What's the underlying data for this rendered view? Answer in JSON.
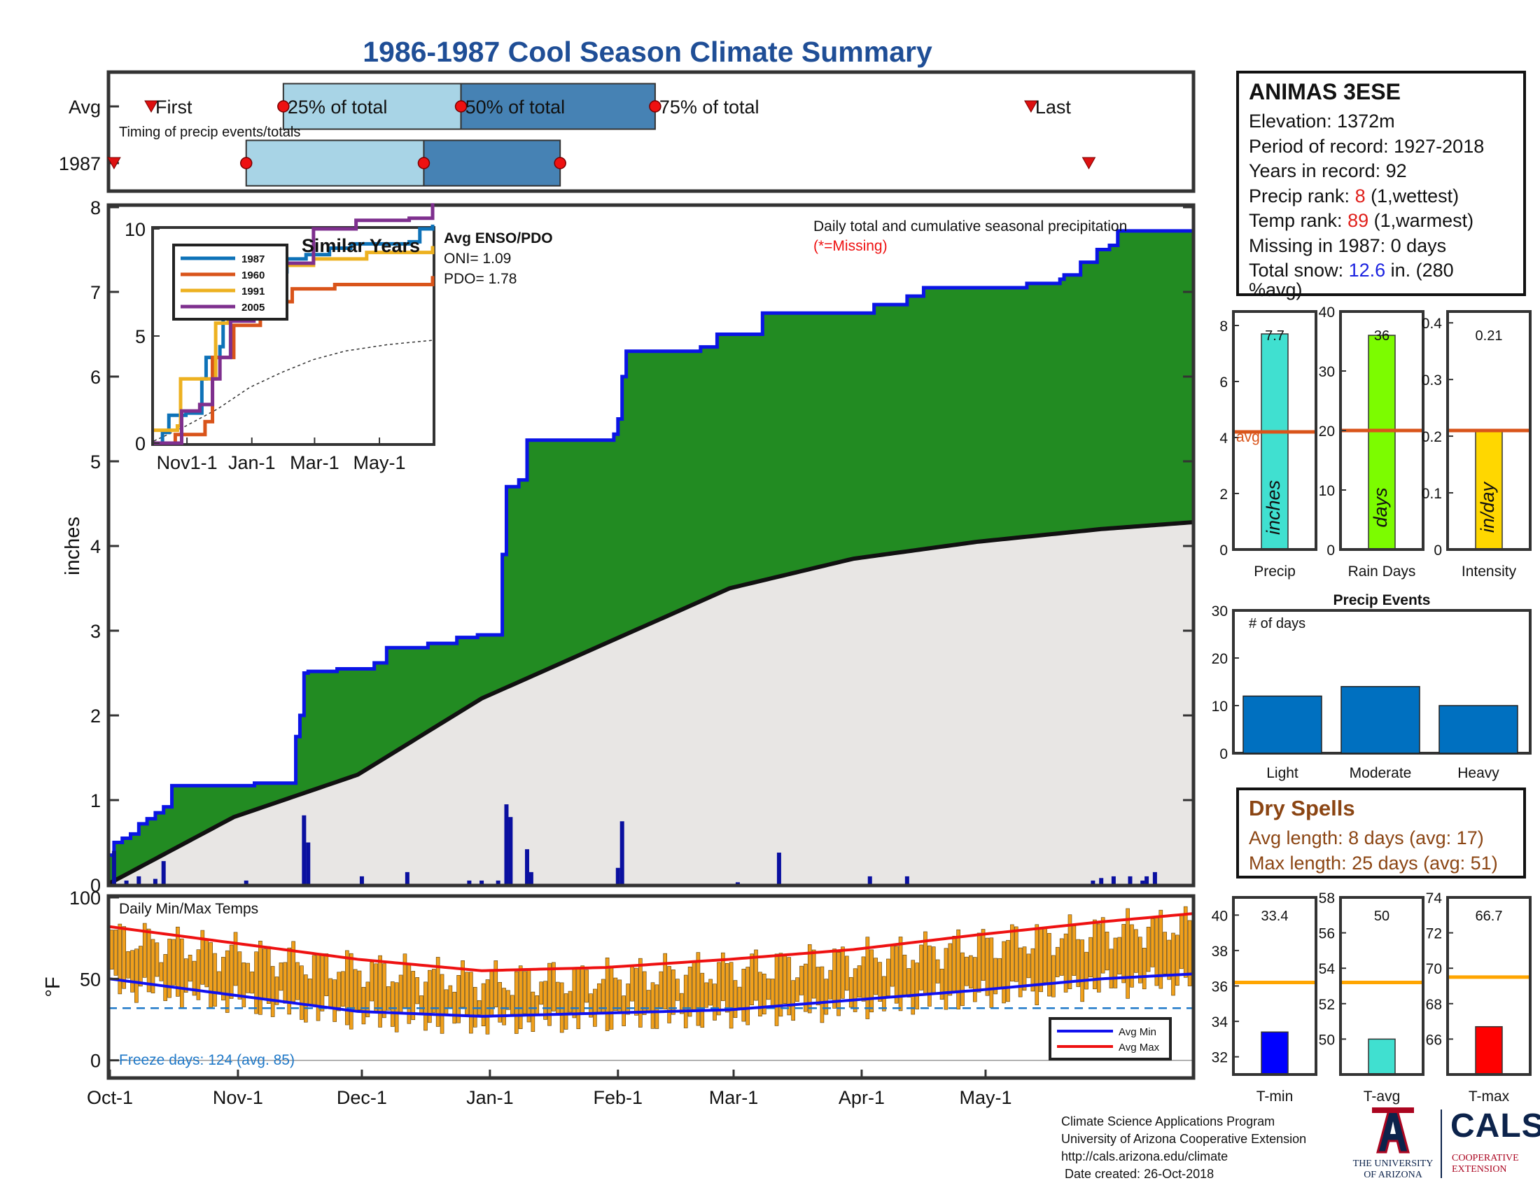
{
  "title": "1986-1987 Cool Season Climate Summary",
  "station": {
    "name": "ANIMAS 3ESE",
    "elevation_label": "Elevation: 1372m",
    "period_label": "Period of record: 1927-2018",
    "years_label": "Years in record: 92",
    "precip_rank_prefix": "Precip rank: ",
    "precip_rank_value": "8",
    "precip_rank_suffix": " (1,wettest)",
    "temp_rank_prefix": "Temp rank: ",
    "temp_rank_value": "89",
    "temp_rank_suffix": " (1,warmest)",
    "missing_label": "Missing in 1987: 0 days",
    "snow_prefix": "Total snow: ",
    "snow_value": "12.6",
    "snow_suffix": " in. (280",
    "snow_line2": "%avg)"
  },
  "dry_spells": {
    "title": "Dry Spells",
    "avg_length": "Avg length: 8 days (avg: 17)",
    "max_length": "Max length: 25 days (avg: 51)"
  },
  "footer": {
    "line1": "Climate Science Applications Program",
    "line2": "University of Arizona Cooperative Extension",
    "line3": "http://cals.arizona.edu/climate",
    "line4": " Date created: 26-Oct-2018"
  },
  "logos": {
    "ua_line1": "THE UNIVERSITY",
    "ua_line2": "OF ARIZONA",
    "cals": "CALS",
    "cals_line1": "COOPERATIVE",
    "cals_line2": "EXTENSION"
  },
  "colors": {
    "cumulative_fill": "#228b22",
    "cumulative_line": "#0a14e6",
    "average_fill": "#e8e6e4",
    "daily_bars": "#0a10a0",
    "temp_bars": "#f0a01c",
    "avg_max": "#ee1111",
    "avg_min": "#1010ee",
    "timing_light": "#a8d4e6",
    "timing_dark": "#4682b4",
    "title": "#1f4e96"
  },
  "chart_data": [
    {
      "id": "timing",
      "type": "timeline",
      "subtitle": "Timing of precip events/totals",
      "rows": [
        "Avg",
        "1987"
      ],
      "avg": {
        "first": "Oct-11",
        "p25": "Nov-12",
        "p50": "Dec-25",
        "p75": "Feb-10",
        "last": "May-12"
      },
      "y1987": {
        "first": "Oct-2",
        "p25": "Nov-3",
        "p50": "Dec-16",
        "p75": "Jan-18",
        "last": "May-26"
      },
      "labels": {
        "first": "First",
        "p25": "25% of total",
        "p50": "50% of total",
        "p75": "75% of total",
        "last": "Last"
      }
    },
    {
      "id": "cumulative",
      "type": "area",
      "annotation": "Daily total and cumulative seasonal precipitation",
      "missing_note": "(*=Missing)",
      "ylabel": "inches",
      "ylim": [
        0,
        8
      ],
      "yticks": [
        "0",
        "1",
        "2",
        "3",
        "4",
        "5",
        "6",
        "7",
        "8"
      ],
      "cumulative_1987": [
        [
          0,
          0.35
        ],
        [
          1,
          0.5
        ],
        [
          3,
          0.55
        ],
        [
          5,
          0.6
        ],
        [
          7,
          0.72
        ],
        [
          9,
          0.78
        ],
        [
          11,
          0.85
        ],
        [
          13,
          0.92
        ],
        [
          15,
          1.17
        ],
        [
          35,
          1.2
        ],
        [
          45,
          1.75
        ],
        [
          46,
          2.0
        ],
        [
          47,
          2.5
        ],
        [
          48,
          2.52
        ],
        [
          55,
          2.55
        ],
        [
          64,
          2.62
        ],
        [
          67,
          2.8
        ],
        [
          77,
          2.85
        ],
        [
          84,
          2.92
        ],
        [
          89,
          2.95
        ],
        [
          95,
          3.9
        ],
        [
          96,
          4.7
        ],
        [
          99,
          4.78
        ],
        [
          101,
          5.25
        ],
        [
          122,
          5.32
        ],
        [
          123,
          5.5
        ],
        [
          124,
          6.0
        ],
        [
          125,
          6.3
        ],
        [
          143,
          6.35
        ],
        [
          147,
          6.5
        ],
        [
          158,
          6.75
        ],
        [
          185,
          6.85
        ],
        [
          193,
          6.95
        ],
        [
          197,
          7.05
        ],
        [
          222,
          7.1
        ],
        [
          230,
          7.15
        ],
        [
          231,
          7.2
        ],
        [
          235,
          7.35
        ],
        [
          239,
          7.5
        ],
        [
          242,
          7.55
        ],
        [
          244,
          7.72
        ],
        [
          262,
          7.72
        ]
      ],
      "daily_1987": [
        [
          1,
          0.4
        ],
        [
          4,
          0.05
        ],
        [
          7,
          0.1
        ],
        [
          11,
          0.07
        ],
        [
          13,
          0.28
        ],
        [
          33,
          0.05
        ],
        [
          47,
          0.82
        ],
        [
          48,
          0.5
        ],
        [
          61,
          0.1
        ],
        [
          72,
          0.15
        ],
        [
          87,
          0.05
        ],
        [
          90,
          0.05
        ],
        [
          94,
          0.05
        ],
        [
          96,
          0.95
        ],
        [
          97,
          0.8
        ],
        [
          101,
          0.42
        ],
        [
          102,
          0.15
        ],
        [
          123,
          0.2
        ],
        [
          124,
          0.75
        ],
        [
          152,
          0.03
        ],
        [
          162,
          0.38
        ],
        [
          184,
          0.1
        ],
        [
          193,
          0.1
        ],
        [
          238,
          0.05
        ],
        [
          240,
          0.08
        ],
        [
          243,
          0.1
        ],
        [
          247,
          0.1
        ],
        [
          250,
          0.05
        ],
        [
          251,
          0.1
        ],
        [
          253,
          0.15
        ]
      ],
      "average": [
        [
          0,
          0.02
        ],
        [
          30,
          0.8
        ],
        [
          60,
          1.3
        ],
        [
          90,
          2.2
        ],
        [
          120,
          2.85
        ],
        [
          150,
          3.5
        ],
        [
          180,
          3.85
        ],
        [
          210,
          4.05
        ],
        [
          240,
          4.2
        ],
        [
          262,
          4.28
        ]
      ]
    },
    {
      "id": "similar_years",
      "type": "line",
      "title": "Similar Years",
      "yticks": [
        "0",
        "5",
        "10"
      ],
      "xticks": [
        "Nov1-1",
        "Jan-1",
        "Mar-1",
        "May-1"
      ],
      "series": [
        {
          "name": "1987",
          "color": "#0e72b8",
          "values": [
            [
              0,
              0
            ],
            [
              8,
              0.5
            ],
            [
              14,
              1.3
            ],
            [
              30,
              1.4
            ],
            [
              45,
              3
            ],
            [
              49,
              4
            ],
            [
              62,
              4.5
            ],
            [
              65,
              6.4
            ],
            [
              85,
              7.6
            ],
            [
              95,
              7.6
            ],
            [
              100,
              8
            ],
            [
              125,
              8.6
            ],
            [
              143,
              8.8
            ],
            [
              165,
              9.1
            ],
            [
              185,
              9.3
            ],
            [
              240,
              9.4
            ],
            [
              250,
              10
            ],
            [
              262,
              10.2
            ]
          ]
        },
        {
          "name": "1960",
          "color": "#d9541a",
          "values": [
            [
              0,
              0
            ],
            [
              18,
              0
            ],
            [
              20,
              0.4
            ],
            [
              48,
              1
            ],
            [
              55,
              4
            ],
            [
              75,
              5.5
            ],
            [
              100,
              6.6
            ],
            [
              130,
              7.2
            ],
            [
              170,
              7.4
            ],
            [
              262,
              7.8
            ]
          ]
        },
        {
          "name": "1991",
          "color": "#edb120",
          "values": [
            [
              0,
              0.6
            ],
            [
              22,
              0.8
            ],
            [
              25,
              3
            ],
            [
              46,
              3
            ],
            [
              58,
              5.6
            ],
            [
              70,
              5.8
            ],
            [
              82,
              7.3
            ],
            [
              95,
              7.5
            ],
            [
              105,
              8.3
            ],
            [
              150,
              8.6
            ],
            [
              200,
              8.9
            ],
            [
              262,
              9.2
            ]
          ]
        },
        {
          "name": "2005",
          "color": "#7e2f8e",
          "values": [
            [
              0,
              0
            ],
            [
              24,
              0
            ],
            [
              26,
              1.5
            ],
            [
              43,
              1.8
            ],
            [
              55,
              3
            ],
            [
              62,
              4
            ],
            [
              72,
              5.7
            ],
            [
              94,
              6.9
            ],
            [
              105,
              7.5
            ],
            [
              117,
              8.4
            ],
            [
              150,
              10
            ],
            [
              190,
              10.4
            ],
            [
              240,
              10.5
            ],
            [
              262,
              11.2
            ]
          ]
        }
      ],
      "average_line": [
        [
          0,
          0.1
        ],
        [
          30,
          0.8
        ],
        [
          60,
          1.6
        ],
        [
          90,
          2.6
        ],
        [
          120,
          3.3
        ],
        [
          150,
          3.9
        ],
        [
          180,
          4.3
        ],
        [
          220,
          4.6
        ],
        [
          262,
          4.8
        ]
      ],
      "ylim": [
        0,
        10
      ],
      "note_title": "Avg ENSO/PDO",
      "oni": "ONI= 1.09",
      "pdo": "PDO= 1.78"
    },
    {
      "id": "temps",
      "type": "bar",
      "label": "Daily Min/Max Temps",
      "ylabel": "°F",
      "ylim": [
        -10,
        100
      ],
      "yticks": [
        "0",
        "50",
        "100"
      ],
      "freeze_line": 32,
      "freeze_note": "Freeze days: 124 (avg. 85)",
      "avg_max": [
        [
          0,
          82
        ],
        [
          30,
          72
        ],
        [
          60,
          62
        ],
        [
          90,
          55
        ],
        [
          120,
          57
        ],
        [
          150,
          62
        ],
        [
          180,
          68
        ],
        [
          210,
          77
        ],
        [
          240,
          85
        ],
        [
          262,
          90
        ]
      ],
      "avg_min": [
        [
          0,
          50
        ],
        [
          30,
          40
        ],
        [
          60,
          30
        ],
        [
          90,
          27
        ],
        [
          120,
          29
        ],
        [
          150,
          31
        ],
        [
          180,
          37
        ],
        [
          210,
          43
        ],
        [
          240,
          50
        ],
        [
          262,
          53
        ]
      ],
      "legend": [
        "Avg Min",
        "Avg Max"
      ]
    },
    {
      "id": "xaxis",
      "type": "axis",
      "xticks": [
        "Oct-1",
        "Nov-1",
        "Dec-1",
        "Jan-1",
        "Feb-1",
        "Mar-1",
        "Apr-1",
        "May-1"
      ]
    },
    {
      "id": "precip_total",
      "type": "bar",
      "categories": [
        "Precip"
      ],
      "values": [
        7.7
      ],
      "value_label": "7.7",
      "avg": 4.2,
      "avg_label": "avg",
      "ylim": [
        0,
        8.5
      ],
      "yticks": [
        "0",
        "2",
        "4",
        "6",
        "8"
      ],
      "unit": "inches",
      "color": "#40e0d0"
    },
    {
      "id": "rain_days",
      "type": "bar",
      "categories": [
        "Rain Days"
      ],
      "values": [
        36
      ],
      "value_label": "36",
      "avg": 20,
      "ylim": [
        0,
        40
      ],
      "yticks": [
        "0",
        "10",
        "20",
        "30",
        "40"
      ],
      "unit": "days",
      "color": "#7cfc00"
    },
    {
      "id": "intensity",
      "type": "bar",
      "categories": [
        "Intensity"
      ],
      "values": [
        0.21
      ],
      "value_label": "0.21",
      "avg": 0.21,
      "ylim": [
        0,
        0.42
      ],
      "yticks": [
        "0",
        "0.1",
        "0.2",
        "0.3",
        "0.4"
      ],
      "unit": "in/day",
      "color": "#ffd700"
    },
    {
      "id": "precip_events",
      "type": "bar",
      "title": "Precip Events",
      "annotation": "# of days",
      "categories": [
        "Light",
        "Moderate",
        "Heavy"
      ],
      "values": [
        12,
        14,
        10
      ],
      "ylim": [
        0,
        30
      ],
      "yticks": [
        "0",
        "10",
        "20",
        "30"
      ],
      "color": "#0070c0"
    },
    {
      "id": "tmin",
      "type": "bar",
      "categories": [
        "T-min"
      ],
      "values": [
        33.4
      ],
      "value_label": "33.4",
      "avg": 36.2,
      "ylim": [
        31,
        41
      ],
      "yticks": [
        "32",
        "34",
        "36",
        "38",
        "40"
      ],
      "color": "#0000ff"
    },
    {
      "id": "tavg",
      "type": "bar",
      "categories": [
        "T-avg"
      ],
      "values": [
        50
      ],
      "value_label": "50",
      "avg": 53.2,
      "ylim": [
        48,
        58
      ],
      "yticks": [
        "50",
        "52",
        "54",
        "56",
        "58"
      ],
      "color": "#40e0d0"
    },
    {
      "id": "tmax",
      "type": "bar",
      "categories": [
        "T-max"
      ],
      "values": [
        66.7
      ],
      "value_label": "66.7",
      "avg": 69.5,
      "ylim": [
        64,
        74
      ],
      "yticks": [
        "66",
        "68",
        "70",
        "72",
        "74"
      ],
      "color": "#ff0000"
    }
  ]
}
